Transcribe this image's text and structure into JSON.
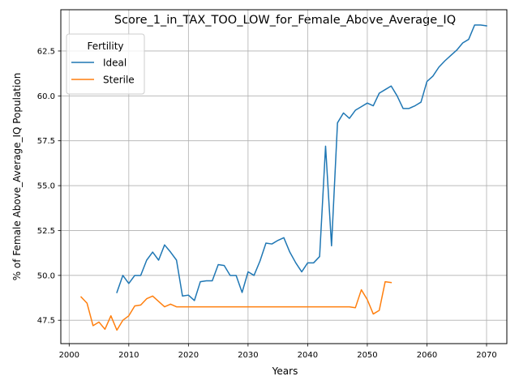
{
  "chart_data": {
    "type": "line",
    "title": "Score_1_in_TAX_TOO_LOW_for_Female_Above_Average_IQ",
    "xlabel": "Years",
    "ylabel": "% of Female Above_Average_IQ Population",
    "xlim": [
      1998.6,
      2073.4
    ],
    "ylim": [
      46.2,
      64.8
    ],
    "xticks": [
      2000,
      2010,
      2020,
      2030,
      2040,
      2050,
      2060,
      2070
    ],
    "yticks": [
      47.5,
      50.0,
      52.5,
      55.0,
      57.5,
      60.0,
      62.5
    ],
    "xtick_labels": [
      "2000",
      "2010",
      "2020",
      "2030",
      "2040",
      "2050",
      "2060",
      "2070"
    ],
    "ytick_labels": [
      "47.5",
      "50.0",
      "52.5",
      "55.0",
      "57.5",
      "60.0",
      "62.5"
    ],
    "grid": true,
    "legend": {
      "title": "Fertility",
      "position": "top-left"
    },
    "series": [
      {
        "name": "Ideal",
        "color": "#1f77b4",
        "x": [
          2008,
          2009,
          2010,
          2011,
          2012,
          2013,
          2014,
          2015,
          2016,
          2017,
          2018,
          2019,
          2020,
          2021,
          2022,
          2023,
          2024,
          2025,
          2026,
          2027,
          2028,
          2029,
          2030,
          2031,
          2032,
          2033,
          2034,
          2035,
          2036,
          2037,
          2038,
          2039,
          2040,
          2041,
          2042,
          2043,
          2044,
          2045,
          2046,
          2047,
          2048,
          2049,
          2050,
          2051,
          2052,
          2053,
          2054,
          2055,
          2056,
          2057,
          2058,
          2059,
          2060,
          2061,
          2062,
          2063,
          2064,
          2065,
          2066,
          2067,
          2068,
          2069,
          2070
        ],
        "values": [
          49.05,
          50.0,
          49.55,
          50.0,
          50.0,
          50.85,
          51.3,
          50.85,
          51.7,
          51.3,
          50.85,
          48.85,
          48.9,
          48.6,
          49.65,
          49.7,
          49.7,
          50.6,
          50.55,
          50.0,
          50.0,
          49.05,
          50.2,
          50.0,
          50.8,
          51.8,
          51.75,
          51.95,
          52.1,
          51.3,
          50.7,
          50.2,
          50.7,
          50.7,
          51.05,
          57.2,
          51.65,
          58.5,
          59.05,
          58.75,
          59.2,
          59.4,
          59.6,
          59.45,
          60.15,
          60.35,
          60.55,
          60.0,
          59.3,
          59.3,
          59.45,
          59.65,
          60.8,
          61.1,
          61.6,
          61.95,
          62.25,
          62.55,
          62.95,
          63.15,
          63.95,
          63.95,
          63.9
        ]
      },
      {
        "name": "Sterile",
        "color": "#ff7f0e",
        "x": [
          2002,
          2003,
          2004,
          2005,
          2006,
          2007,
          2008,
          2009,
          2010,
          2011,
          2012,
          2013,
          2014,
          2015,
          2016,
          2017,
          2018,
          2019,
          2020,
          2021,
          2022,
          2023,
          2024,
          2025,
          2026,
          2027,
          2028,
          2029,
          2030,
          2031,
          2032,
          2033,
          2034,
          2035,
          2036,
          2037,
          2038,
          2039,
          2040,
          2041,
          2042,
          2043,
          2044,
          2045,
          2046,
          2047,
          2048,
          2049,
          2050,
          2051,
          2052,
          2053,
          2054
        ],
        "values": [
          48.8,
          48.45,
          47.2,
          47.4,
          47.0,
          47.75,
          46.95,
          47.5,
          47.75,
          48.3,
          48.35,
          48.7,
          48.85,
          48.55,
          48.25,
          48.4,
          48.25,
          48.25,
          48.25,
          48.25,
          48.25,
          48.25,
          48.25,
          48.25,
          48.25,
          48.25,
          48.25,
          48.25,
          48.25,
          48.25,
          48.25,
          48.25,
          48.25,
          48.25,
          48.25,
          48.25,
          48.25,
          48.25,
          48.25,
          48.25,
          48.25,
          48.25,
          48.25,
          48.25,
          48.25,
          48.25,
          48.2,
          49.2,
          48.65,
          47.85,
          48.05,
          49.65,
          49.6
        ]
      }
    ]
  }
}
